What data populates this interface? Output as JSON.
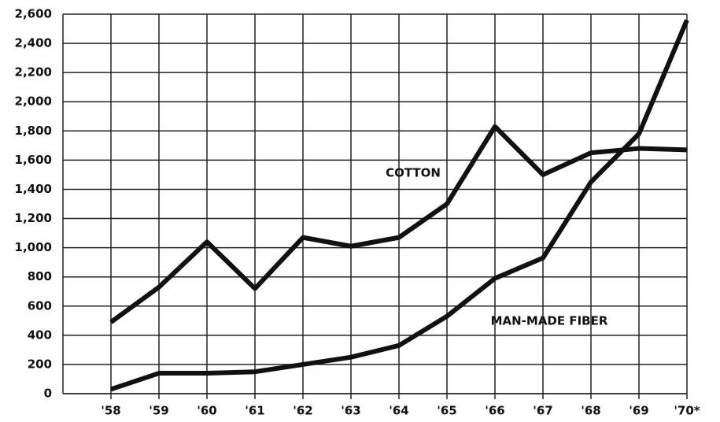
{
  "chart_data": {
    "type": "line",
    "categories": [
      "'58",
      "'59",
      "'60",
      "'61",
      "'62",
      "'63",
      "'64",
      "'65",
      "'66",
      "'67",
      "'68",
      "'69",
      "'70*"
    ],
    "series": [
      {
        "name": "COTTON",
        "color": "#111111",
        "values": [
          490,
          730,
          1040,
          720,
          1070,
          1010,
          1070,
          1300,
          1830,
          1500,
          1650,
          1680,
          1670
        ]
      },
      {
        "name": "MAN-MADE FIBER",
        "color": "#111111",
        "values": [
          30,
          140,
          140,
          150,
          200,
          250,
          330,
          530,
          790,
          930,
          1450,
          1780,
          2560
        ]
      }
    ],
    "ylim": [
      0,
      2600
    ],
    "yticks": [
      0,
      200,
      400,
      600,
      800,
      {
        "value": 1000,
        "label": "1,000"
      },
      {
        "value": 1200,
        "label": "1,200"
      },
      {
        "value": 1400,
        "label": "1,400"
      },
      {
        "value": 1600,
        "label": "1,600"
      },
      {
        "value": 1800,
        "label": "1,800"
      },
      {
        "value": 2000,
        "label": "2,000"
      },
      {
        "value": 2200,
        "label": "2,200"
      },
      {
        "value": 2400,
        "label": "2,400"
      },
      {
        "value": 2600,
        "label": "2,600"
      }
    ],
    "grid": true
  }
}
